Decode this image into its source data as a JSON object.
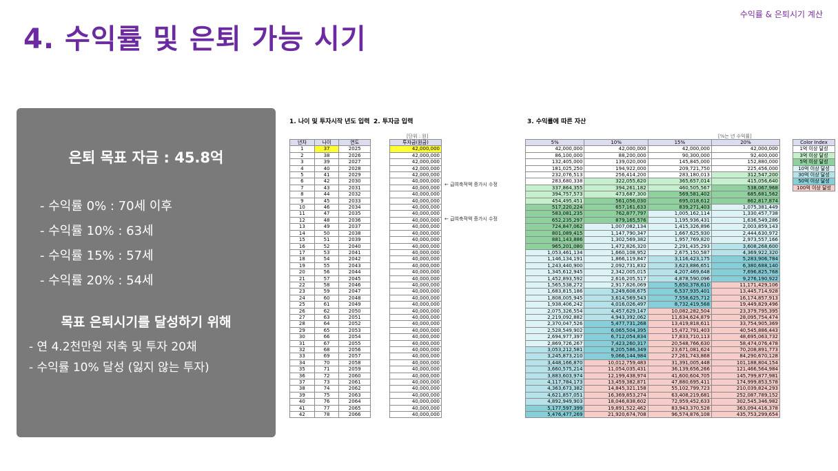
{
  "header": {
    "top_note": "수익률 & 은퇴시기 계산",
    "title": "4. 수익률 및 은퇴 가능 시기"
  },
  "panel": {
    "goal": "은퇴 목표 자금 : 45.8억",
    "rates": [
      "- 수익률   0% : 70세 이후",
      "- 수익률 10% : 63세",
      "- 수익률 15% : 57세",
      "- 수익률 20% : 54세"
    ],
    "subtitle": "목표 은퇴시기를 달성하기 위해",
    "actions": [
      "- 연 4.2천만원 저축 및 투자 20채",
      "- 수익률 10% 달성 (잃지 않는 투자)"
    ]
  },
  "sheet": {
    "section1": "1. 나이 및 투자시작 년도 입력",
    "section2": "2. 투자금 입력",
    "section3": "3. 수익률에 따른 자산",
    "unit_left": "[단위 : 원]",
    "unit_right": "[%는 년 수익률]",
    "headers_left": [
      "년차",
      "나이",
      "연도"
    ],
    "header_invest": "투자금(원금)",
    "headers_rates": [
      "5%",
      "10%",
      "15%",
      "20%"
    ],
    "header_color": "Color Index",
    "notes": [
      "← 급여축적액 증가시 수정",
      "← 급여축적액 증가시 수정"
    ],
    "color_index": [
      {
        "label": "1억 이상 달성",
        "color": "#ffffff"
      },
      {
        "label": "3억 이상 달성",
        "color": "#c6efce"
      },
      {
        "label": "5억 이상 달성",
        "color": "#8fd19e"
      },
      {
        "label": "10억 이상 달성",
        "color": "#ddf3f6"
      },
      {
        "label": "30억 이상 달성",
        "color": "#b6e3ea"
      },
      {
        "label": "50억 이상 달성",
        "color": "#86cfd8"
      },
      {
        "label": "100억 이상 달성",
        "color": "#f6cdc8"
      }
    ],
    "rows": [
      [
        "1",
        "37",
        "2025",
        "42,000,000",
        "42,000,000",
        "42,000,000",
        "42,000,000",
        "42,000,000"
      ],
      [
        "2",
        "38",
        "2026",
        "42,000,000",
        "86,100,000",
        "88,200,000",
        "90,300,000",
        "92,400,000"
      ],
      [
        "3",
        "39",
        "2027",
        "42,000,000",
        "132,405,000",
        "139,020,000",
        "145,845,000",
        "152,880,000"
      ],
      [
        "4",
        "40",
        "2028",
        "42,000,000",
        "181,025,250",
        "194,922,000",
        "209,721,750",
        "225,456,000"
      ],
      [
        "5",
        "41",
        "2029",
        "42,000,000",
        "232,076,513",
        "256,414,200",
        "283,180,013",
        "312,547,200"
      ],
      [
        "6",
        "42",
        "2030",
        "40,000,000",
        "283,680,338",
        "322,055,620",
        "365,657,014",
        "415,056,640"
      ],
      [
        "7",
        "43",
        "2031",
        "40,000,000",
        "337,864,355",
        "394,261,182",
        "460,505,567",
        "538,067,968"
      ],
      [
        "8",
        "44",
        "2032",
        "40,000,000",
        "394,757,573",
        "473,687,300",
        "569,581,402",
        "685,681,562"
      ],
      [
        "9",
        "45",
        "2033",
        "40,000,000",
        "454,495,451",
        "561,056,030",
        "695,018,612",
        "862,817,874"
      ],
      [
        "10",
        "46",
        "2034",
        "40,000,000",
        "517,220,224",
        "657,161,633",
        "839,271,403",
        "1,075,381,449"
      ],
      [
        "11",
        "47",
        "2035",
        "40,000,000",
        "583,081,235",
        "762,877,797",
        "1,005,162,114",
        "1,330,457,738"
      ],
      [
        "12",
        "48",
        "2036",
        "40,000,000",
        "652,235,297",
        "879,165,576",
        "1,195,936,431",
        "1,636,549,286"
      ],
      [
        "13",
        "49",
        "2037",
        "40,000,000",
        "724,847,062",
        "1,007,082,134",
        "1,415,326,896",
        "2,003,859,143"
      ],
      [
        "14",
        "50",
        "2038",
        "40,000,000",
        "801,089,415",
        "1,147,790,347",
        "1,667,625,930",
        "2,444,630,972"
      ],
      [
        "15",
        "51",
        "2039",
        "40,000,000",
        "881,143,886",
        "1,302,569,382",
        "1,957,769,820",
        "2,973,557,166"
      ],
      [
        "16",
        "52",
        "2040",
        "40,000,000",
        "965,201,080",
        "1,472,826,320",
        "2,291,435,293",
        "3,608,268,600"
      ],
      [
        "17",
        "53",
        "2041",
        "40,000,000",
        "1,053,461,134",
        "1,660,108,952",
        "2,675,150,587",
        "4,369,922,320"
      ],
      [
        "18",
        "54",
        "2042",
        "40,000,000",
        "1,146,134,191",
        "1,866,119,847",
        "3,116,423,175",
        "5,283,906,784"
      ],
      [
        "19",
        "55",
        "2043",
        "40,000,000",
        "1,243,440,900",
        "2,092,731,832",
        "3,623,886,651",
        "6,380,688,140"
      ],
      [
        "20",
        "56",
        "2044",
        "40,000,000",
        "1,345,612,945",
        "2,342,005,015",
        "4,207,469,648",
        "7,696,825,768"
      ],
      [
        "21",
        "57",
        "2045",
        "40,000,000",
        "1,452,893,592",
        "2,616,205,517",
        "4,878,590,096",
        "9,276,190,922"
      ],
      [
        "22",
        "58",
        "2046",
        "40,000,000",
        "1,565,538,272",
        "2,917,826,069",
        "5,650,378,610",
        "11,171,429,106"
      ],
      [
        "23",
        "59",
        "2047",
        "40,000,000",
        "1,683,815,186",
        "3,249,608,675",
        "6,537,935,401",
        "13,445,714,928"
      ],
      [
        "24",
        "60",
        "2048",
        "40,000,000",
        "1,808,005,945",
        "3,614,569,543",
        "7,558,625,712",
        "16,174,857,913"
      ],
      [
        "25",
        "61",
        "2049",
        "40,000,000",
        "1,938,406,242",
        "4,016,026,497",
        "8,732,419,568",
        "19,449,829,496"
      ],
      [
        "26",
        "62",
        "2050",
        "40,000,000",
        "2,075,326,554",
        "4,457,629,147",
        "10,082,282,504",
        "23,379,795,395"
      ],
      [
        "27",
        "63",
        "2051",
        "40,000,000",
        "2,219,092,882",
        "4,943,392,062",
        "11,634,624,879",
        "28,095,754,474"
      ],
      [
        "28",
        "64",
        "2052",
        "40,000,000",
        "2,370,047,526",
        "5,477,731,268",
        "13,419,818,611",
        "33,754,905,369"
      ],
      [
        "29",
        "65",
        "2053",
        "40,000,000",
        "2,528,549,902",
        "6,065,504,395",
        "15,472,791,403",
        "40,545,886,443"
      ],
      [
        "30",
        "66",
        "2054",
        "40,000,000",
        "2,694,977,397",
        "6,712,054,834",
        "17,833,710,113",
        "48,695,063,732"
      ],
      [
        "31",
        "67",
        "2055",
        "40,000,000",
        "2,869,726,267",
        "7,423,260,317",
        "20,548,766,630",
        "58,474,076,478"
      ],
      [
        "32",
        "68",
        "2056",
        "40,000,000",
        "3,053,212,581",
        "8,205,586,349",
        "23,671,081,624",
        "70,208,891,773"
      ],
      [
        "33",
        "69",
        "2057",
        "40,000,000",
        "3,245,873,210",
        "9,066,144,984",
        "27,261,743,868",
        "84,290,670,128"
      ],
      [
        "34",
        "70",
        "2058",
        "40,000,000",
        "3,448,166,870",
        "10,012,759,483",
        "31,391,005,448",
        "101,188,804,154"
      ],
      [
        "35",
        "71",
        "2059",
        "40,000,000",
        "3,660,575,214",
        "11,054,035,431",
        "36,139,656,266",
        "121,466,564,984"
      ],
      [
        "36",
        "72",
        "2060",
        "40,000,000",
        "3,883,603,974",
        "12,199,438,974",
        "41,600,604,705",
        "145,799,877,981"
      ],
      [
        "37",
        "73",
        "2061",
        "40,000,000",
        "4,117,784,173",
        "13,459,382,871",
        "47,880,695,411",
        "174,999,853,578"
      ],
      [
        "38",
        "74",
        "2062",
        "40,000,000",
        "4,363,673,382",
        "14,845,321,158",
        "55,102,799,723",
        "210,039,824,293"
      ],
      [
        "39",
        "75",
        "2063",
        "40,000,000",
        "4,621,857,051",
        "16,369,853,274",
        "63,408,219,681",
        "252,087,789,152"
      ],
      [
        "40",
        "76",
        "2064",
        "40,000,000",
        "4,892,949,903",
        "18,046,838,602",
        "72,959,452,633",
        "302,545,346,982"
      ],
      [
        "41",
        "77",
        "2065",
        "40,000,000",
        "5,177,597,399",
        "19,891,522,462",
        "83,943,370,528",
        "363,094,416,378"
      ],
      [
        "42",
        "78",
        "2066",
        "40,000,000",
        "5,476,477,269",
        "21,920,674,708",
        "96,574,876,108",
        "435,753,299,654"
      ]
    ]
  }
}
